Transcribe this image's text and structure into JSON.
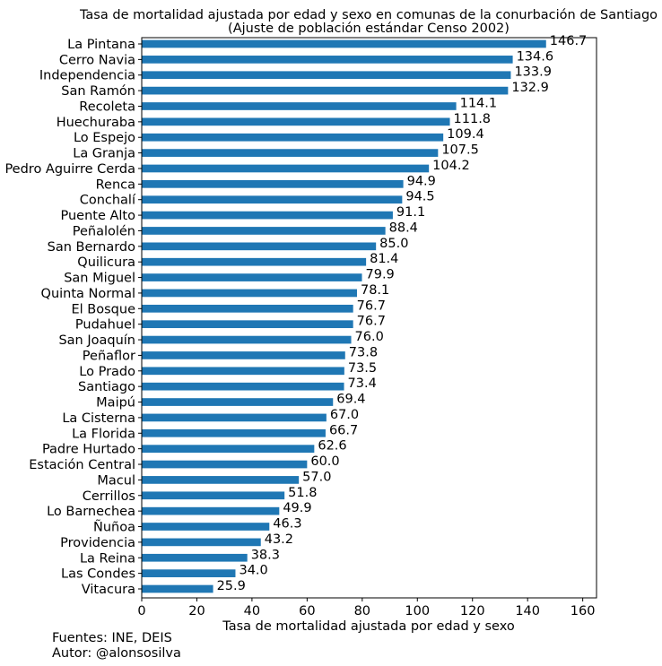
{
  "chart_data": {
    "type": "bar",
    "orientation": "horizontal",
    "title": "Tasa de mortalidad ajustada por edad y sexo en comunas de la conurbación de Santiago",
    "subtitle": "(Ajuste de población estándar Censo 2002)",
    "xlabel": "Tasa de mortalidad ajustada por edad y sexo",
    "ylabel": "",
    "xlim": [
      0,
      165
    ],
    "xticks": [
      0,
      20,
      40,
      60,
      80,
      100,
      120,
      140,
      160
    ],
    "grid": false,
    "bar_color": "#1f77b4",
    "categories": [
      "La Pintana",
      "Cerro Navia",
      "Independencia",
      "San Ramón",
      "Recoleta",
      "Huechuraba",
      "Lo Espejo",
      "La Granja",
      "Pedro Aguirre Cerda",
      "Renca",
      "Conchalí",
      "Puente Alto",
      "Peñalolén",
      "San Bernardo",
      "Quilicura",
      "San Miguel",
      "Quinta Normal",
      "El Bosque",
      "Pudahuel",
      "San Joaquín",
      "Peñaflor",
      "Lo Prado",
      "Santiago",
      "Maipú",
      "La Cisterna",
      "La Florida",
      "Padre Hurtado",
      "Estación Central",
      "Macul",
      "Cerrillos",
      "Lo Barnechea",
      "Ñuñoa",
      "Providencia",
      "La Reina",
      "Las Condes",
      "Vitacura"
    ],
    "values": [
      146.7,
      134.6,
      133.9,
      132.9,
      114.1,
      111.8,
      109.4,
      107.5,
      104.2,
      94.9,
      94.5,
      91.1,
      88.4,
      85.0,
      81.4,
      79.9,
      78.1,
      76.7,
      76.7,
      76.0,
      73.8,
      73.5,
      73.4,
      69.4,
      67.0,
      66.7,
      62.6,
      60.0,
      57.0,
      51.8,
      49.9,
      46.3,
      43.2,
      38.3,
      34.0,
      25.9
    ],
    "data_labels": [
      "146.7",
      "134.6",
      "133.9",
      "132.9",
      "114.1",
      "111.8",
      "109.4",
      "107.5",
      "104.2",
      "94.9",
      "94.5",
      "91.1",
      "88.4",
      "85.0",
      "81.4",
      "79.9",
      "78.1",
      "76.7",
      "76.7",
      "76.0",
      "73.8",
      "73.5",
      "73.4",
      "69.4",
      "67.0",
      "66.7",
      "62.6",
      "60.0",
      "57.0",
      "51.8",
      "49.9",
      "46.3",
      "43.2",
      "38.3",
      "34.0",
      "25.9"
    ]
  },
  "footer": {
    "sources": "Fuentes: INE, DEIS",
    "author": "Autor: @alonsosilva"
  }
}
